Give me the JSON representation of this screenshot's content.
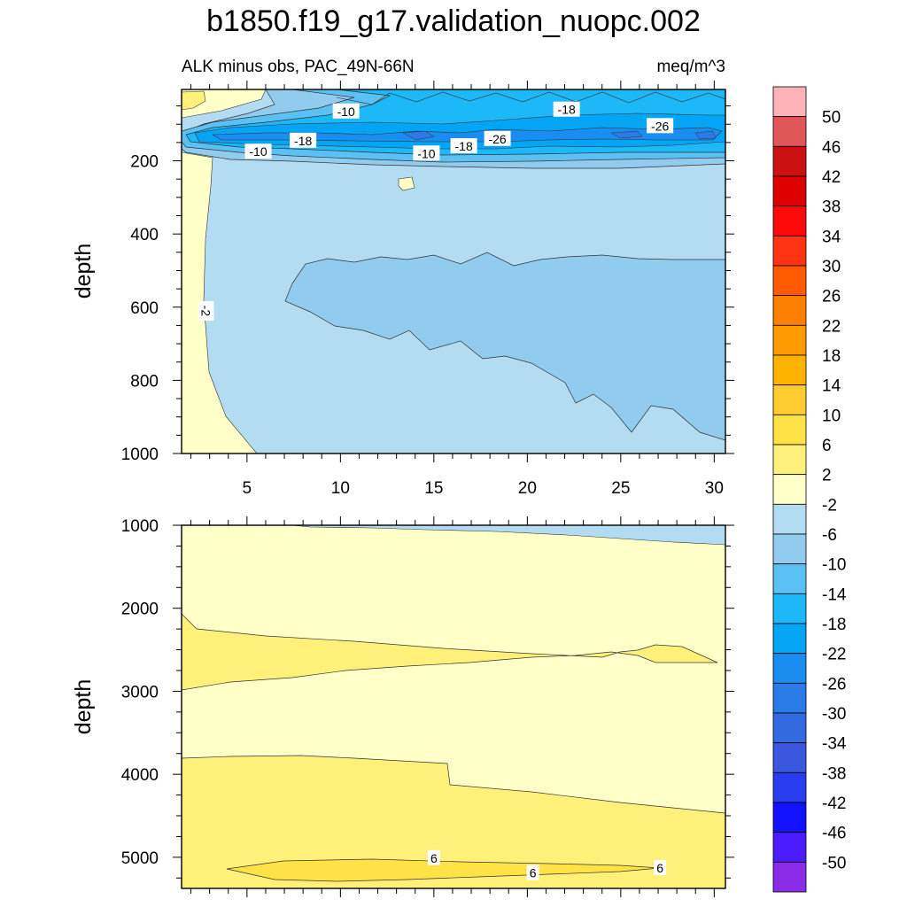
{
  "chart_data": {
    "type": "heatmap",
    "title": "b1850.f19_g17.validation_nuopc.002",
    "panels": [
      {
        "name": "upper",
        "left_label": "ALK minus obs, PAC_49N-66N",
        "right_label": "meq/m^3",
        "ylabel": "depth",
        "xlim": [
          1.5,
          30.6
        ],
        "ylim": [
          1000,
          5
        ],
        "y_reversed": true,
        "x_ticks": [
          5,
          10,
          15,
          20,
          25,
          30
        ],
        "y_ticks": [
          200,
          400,
          600,
          800,
          1000
        ],
        "contour_labels": [
          {
            "text": "-10",
            "x": 10.3,
            "y": 65
          },
          {
            "text": "-18",
            "x": 22.1,
            "y": 60
          },
          {
            "text": "-26",
            "x": 27.1,
            "y": 105
          },
          {
            "text": "-18",
            "x": 8.0,
            "y": 145
          },
          {
            "text": "-26",
            "x": 18.4,
            "y": 140
          },
          {
            "text": "-18",
            "x": 16.6,
            "y": 160
          },
          {
            "text": "-10",
            "x": 5.6,
            "y": 175
          },
          {
            "text": "-10",
            "x": 14.6,
            "y": 180
          },
          {
            "text": "-2",
            "x": 2.8,
            "y": 610,
            "rotate": 90
          }
        ]
      },
      {
        "name": "lower",
        "left_label": "",
        "right_label": "",
        "ylabel": "depth",
        "xlim": [
          1.5,
          30.6
        ],
        "ylim": [
          5375,
          1000
        ],
        "y_reversed": true,
        "x_ticks": [
          5,
          10,
          15,
          20,
          25,
          30
        ],
        "y_ticks": [
          1000,
          2000,
          3000,
          4000,
          5000
        ],
        "contour_labels": [
          {
            "text": "6",
            "x": 15.0,
            "y": 5010
          },
          {
            "text": "6",
            "x": 20.3,
            "y": 5190
          },
          {
            "text": "6",
            "x": 27.1,
            "y": 5130
          }
        ]
      }
    ],
    "colorbar": {
      "labels": [
        50,
        46,
        42,
        38,
        34,
        30,
        26,
        22,
        18,
        14,
        10,
        6,
        2,
        -2,
        -6,
        -10,
        -14,
        -18,
        -22,
        -26,
        -30,
        -34,
        -38,
        -42,
        -46,
        -50
      ],
      "colors": [
        "#ffb3b8",
        "#e15759",
        "#cc1111",
        "#dd0000",
        "#ff0a0a",
        "#ff3311",
        "#ff5a00",
        "#ff8000",
        "#ff9b00",
        "#ffb300",
        "#ffcb2e",
        "#ffe246",
        "#fff07a",
        "#ffffc8",
        "#b3dcf2",
        "#91cbee",
        "#5bc1f5",
        "#1cb8f8",
        "#05a5f5",
        "#1a8ef0",
        "#2a7ae8",
        "#336ae0",
        "#3a57e0",
        "#2a3cf0",
        "#1212ff",
        "#4a1cff",
        "#8a2be8"
      ]
    }
  }
}
